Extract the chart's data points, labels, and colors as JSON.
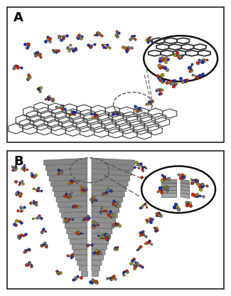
{
  "figure_bg": "#ffffff",
  "panel_border_color": "#222222",
  "label_fontsize": 13,
  "atom_colors": {
    "red": "#dd2200",
    "blue": "#1133cc",
    "yellow": "#999900",
    "gray": "#777777",
    "dark_gray": "#444444",
    "white": "#ffffff",
    "orange": "#cc6600"
  },
  "graphene_color": "#444444",
  "sheet_color": "#888888",
  "sheet_edge_color": "#666666",
  "dashed_color": "#555555",
  "zoom_border_color": "#111111"
}
